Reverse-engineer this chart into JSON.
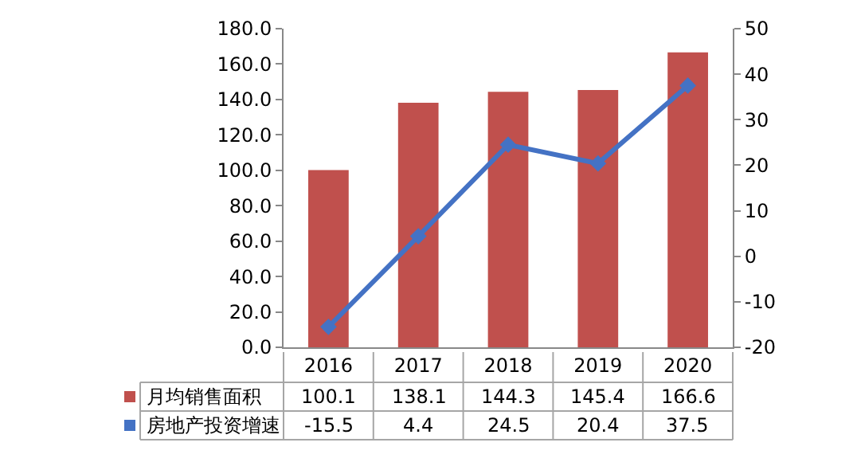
{
  "chart_data": {
    "type": "bar",
    "categories": [
      "2016",
      "2017",
      "2018",
      "2019",
      "2020"
    ],
    "series": [
      {
        "name": "月均销售面积",
        "color": "#c0504d",
        "values": [
          100.1,
          138.1,
          144.3,
          145.4,
          166.6
        ]
      },
      {
        "name": "房地产投资增速",
        "type": "line",
        "axis": "y2",
        "color": "#4472c4",
        "marker": "diamond",
        "line_style": "solid",
        "values": [
          -15.5,
          4.4,
          24.5,
          20.4,
          37.5
        ]
      }
    ],
    "ylim": [
      0,
      180
    ],
    "yticks": [
      {
        "value": 0,
        "label": "0.0"
      },
      {
        "value": 20,
        "label": "20.0"
      },
      {
        "value": 40,
        "label": "40.0"
      },
      {
        "value": 60,
        "label": "60.0"
      },
      {
        "value": 80,
        "label": "80.0"
      },
      {
        "value": 100,
        "label": "100.0"
      },
      {
        "value": 120,
        "label": "120.0"
      },
      {
        "value": 140,
        "label": "140.0"
      },
      {
        "value": 160,
        "label": "160.0"
      },
      {
        "value": 180,
        "label": "180.0"
      }
    ],
    "y2lim": [
      -20,
      50
    ],
    "y2ticks": [
      -20,
      -10,
      0,
      10,
      20,
      30,
      40,
      50
    ],
    "data_labels": true,
    "legend": "bottom left"
  }
}
